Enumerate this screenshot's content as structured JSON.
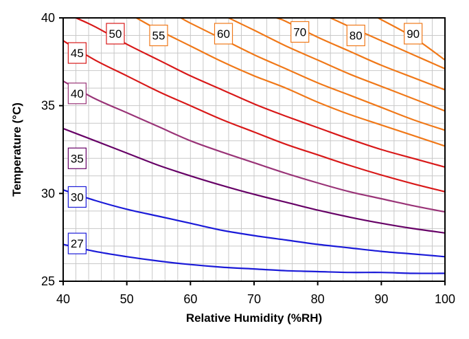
{
  "chart_data": {
    "type": "line",
    "title": "",
    "xlabel": "Relative Humidity (%RH)",
    "ylabel": "Temperature (°C)",
    "xlim": [
      40,
      100
    ],
    "ylim": [
      25,
      40
    ],
    "x_ticks": [
      40,
      50,
      60,
      70,
      80,
      90,
      100
    ],
    "y_ticks": [
      25,
      30,
      35,
      40
    ],
    "x_tick_labels": [
      "40",
      "50",
      "60",
      "70",
      "80",
      "90",
      "100"
    ],
    "y_tick_labels": [
      "25",
      "30",
      "35",
      "40"
    ],
    "grid": true,
    "series": [
      {
        "name": "27",
        "color": "#1a1ad8",
        "x": [
          40,
          45,
          50,
          55,
          60,
          65,
          70,
          75,
          80,
          85,
          90,
          95,
          100
        ],
        "y": [
          27.1,
          26.7,
          26.4,
          26.15,
          25.95,
          25.8,
          25.7,
          25.6,
          25.55,
          25.5,
          25.5,
          25.45,
          25.45
        ]
      },
      {
        "name": "30",
        "color": "#1a1ad8",
        "x": [
          40,
          45,
          50,
          55,
          60,
          65,
          70,
          75,
          80,
          85,
          90,
          95,
          100
        ],
        "y": [
          30.2,
          29.6,
          29.1,
          28.7,
          28.3,
          27.9,
          27.6,
          27.35,
          27.1,
          26.9,
          26.7,
          26.55,
          26.4
        ]
      },
      {
        "name": "35",
        "color": "#660066",
        "x": [
          40,
          45,
          50,
          55,
          60,
          65,
          70,
          75,
          80,
          85,
          90,
          95,
          100
        ],
        "y": [
          33.7,
          33.0,
          32.3,
          31.6,
          31.0,
          30.45,
          29.95,
          29.5,
          29.05,
          28.65,
          28.3,
          28.0,
          27.75
        ]
      },
      {
        "name": "40",
        "color": "#993377",
        "x": [
          40,
          45,
          50,
          55,
          60,
          65,
          70,
          75,
          80,
          85,
          90,
          95,
          100
        ],
        "y": [
          36.4,
          35.4,
          34.6,
          33.8,
          33.0,
          32.35,
          31.75,
          31.15,
          30.6,
          30.1,
          29.7,
          29.3,
          28.95
        ]
      },
      {
        "name": "45",
        "color": "#d81818",
        "x": [
          40,
          45,
          50,
          55,
          60,
          65,
          70,
          75,
          80,
          85,
          90,
          95,
          100
        ],
        "y": [
          38.7,
          37.6,
          36.7,
          35.8,
          35.0,
          34.2,
          33.5,
          32.8,
          32.2,
          31.6,
          31.05,
          30.55,
          30.1
        ]
      },
      {
        "name": "50",
        "color": "#d81818",
        "x": [
          42,
          45,
          50,
          55,
          60,
          65,
          70,
          75,
          80,
          85,
          90,
          95,
          100
        ],
        "y": [
          40.0,
          39.5,
          38.5,
          37.6,
          36.7,
          35.9,
          35.1,
          34.4,
          33.75,
          33.1,
          32.5,
          32.0,
          31.5
        ]
      },
      {
        "name": "55",
        "color": "#f07818",
        "x": [
          51.5,
          55,
          60,
          65,
          70,
          75,
          80,
          85,
          90,
          95,
          100
        ],
        "y": [
          40.0,
          39.3,
          38.4,
          37.5,
          36.7,
          36.0,
          35.2,
          34.5,
          33.9,
          33.3,
          32.7
        ]
      },
      {
        "name": "60",
        "color": "#f07818",
        "x": [
          58.5,
          60,
          65,
          70,
          75,
          80,
          85,
          90,
          95,
          100
        ],
        "y": [
          40.0,
          39.7,
          38.8,
          37.9,
          37.1,
          36.3,
          35.6,
          34.9,
          34.2,
          33.6
        ]
      },
      {
        "name": "70",
        "color": "#f07818",
        "x": [
          66,
          70,
          75,
          80,
          85,
          90,
          95,
          100
        ],
        "y": [
          40.0,
          39.3,
          38.4,
          37.6,
          36.8,
          36.1,
          35.4,
          34.7
        ]
      },
      {
        "name": "80",
        "color": "#f07818",
        "x": [
          73.5,
          75,
          80,
          85,
          90,
          95,
          100
        ],
        "y": [
          40.0,
          39.8,
          38.9,
          38.1,
          37.3,
          36.6,
          35.9
        ]
      },
      {
        "name": "90",
        "color": "#f07818",
        "x": [
          82,
          85,
          90,
          95,
          100
        ],
        "y": [
          40.0,
          39.5,
          38.7,
          37.9,
          37.1
        ]
      },
      {
        "name": "",
        "color": "#f07818",
        "x": [
          89.5,
          90,
          95,
          100
        ],
        "y": [
          40.0,
          39.9,
          38.9,
          37.6
        ]
      }
    ],
    "labels": [
      {
        "text": "27",
        "x": 42.2,
        "y": 27.15,
        "color": "#1a1ad8"
      },
      {
        "text": "30",
        "x": 42.2,
        "y": 29.8,
        "color": "#1a1ad8"
      },
      {
        "text": "35",
        "x": 42.2,
        "y": 32.0,
        "color": "#660066"
      },
      {
        "text": "40",
        "x": 42.2,
        "y": 35.7,
        "color": "#993377"
      },
      {
        "text": "45",
        "x": 42.2,
        "y": 38.0,
        "color": "#d81818"
      },
      {
        "text": "50",
        "x": 48.2,
        "y": 39.1,
        "color": "#d81818"
      },
      {
        "text": "55",
        "x": 55.0,
        "y": 39.0,
        "color": "#f07818"
      },
      {
        "text": "60",
        "x": 65.2,
        "y": 39.1,
        "color": "#f07818"
      },
      {
        "text": "70",
        "x": 77.2,
        "y": 39.2,
        "color": "#f07818"
      },
      {
        "text": "80",
        "x": 86.0,
        "y": 39.0,
        "color": "#f07818"
      },
      {
        "text": "90",
        "x": 95.0,
        "y": 39.1,
        "color": "#f07818"
      }
    ]
  }
}
